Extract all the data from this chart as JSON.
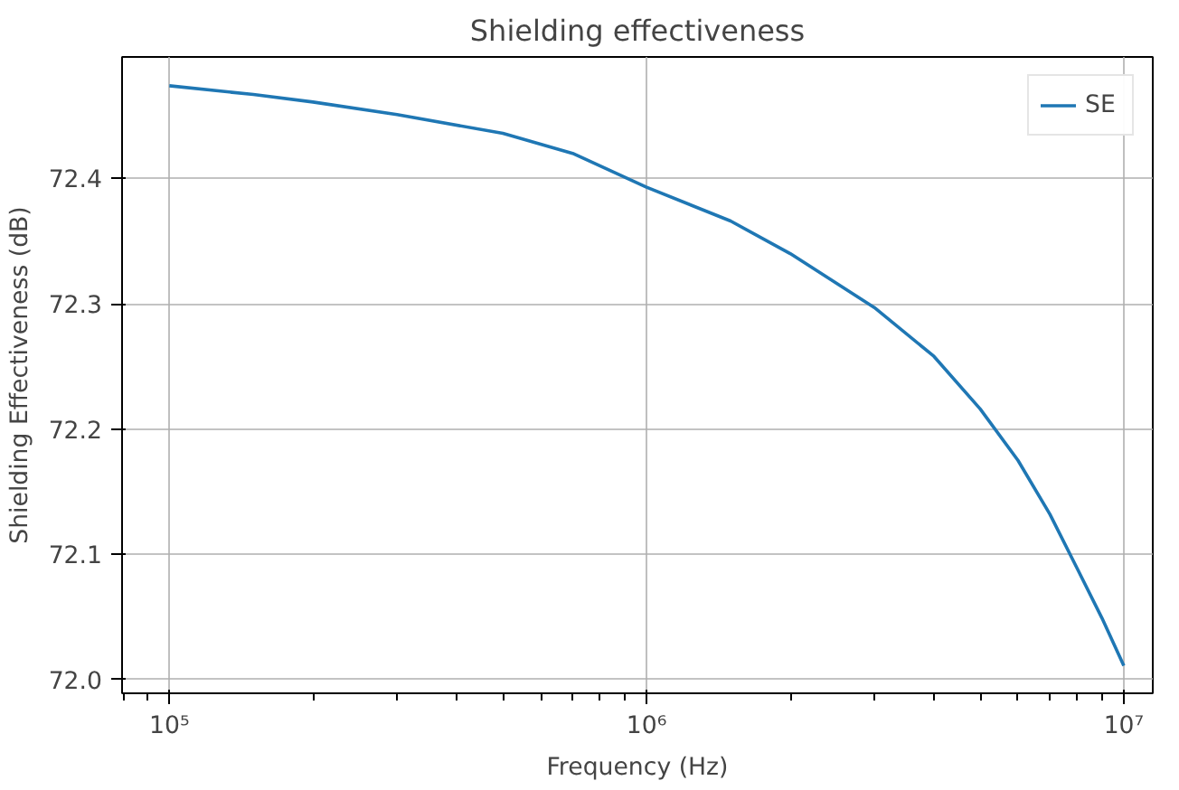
{
  "chart_data": {
    "type": "line",
    "title": "Shielding effectiveness",
    "xlabel": "Frequency (Hz)",
    "ylabel": "Shielding Effectiveness (dB)",
    "x": [
      100000,
      150000,
      200000,
      300000,
      500000,
      700000,
      1000000,
      1500000,
      2000000,
      3000000,
      4000000,
      5000000,
      6000000,
      7000000,
      8000000,
      9000000,
      10000000
    ],
    "series": [
      {
        "name": "SE",
        "color": "#1f77b4",
        "values": [
          72.474,
          72.467,
          72.461,
          72.451,
          72.436,
          72.42,
          72.393,
          72.366,
          72.34,
          72.297,
          72.258,
          72.216,
          72.175,
          72.132,
          72.088,
          72.049,
          72.011
        ]
      }
    ],
    "log": "x",
    "xlim": [
      79600,
      11500000
    ],
    "ylim": [
      71.989,
      72.497
    ],
    "xticks": [
      {
        "value": 100000,
        "label": "10⁵"
      },
      {
        "value": 1000000,
        "label": "10⁶"
      },
      {
        "value": 10000000,
        "label": "10⁷"
      }
    ],
    "yticks": [
      {
        "value": 72.0,
        "label": "72.0"
      },
      {
        "value": 72.1,
        "label": "72.1"
      },
      {
        "value": 72.2,
        "label": "72.2"
      },
      {
        "value": 72.3,
        "label": "72.3"
      },
      {
        "value": 72.4,
        "label": "72.4"
      }
    ],
    "grid": true,
    "legend": "top right",
    "line_style": "solid",
    "marker": "none"
  }
}
